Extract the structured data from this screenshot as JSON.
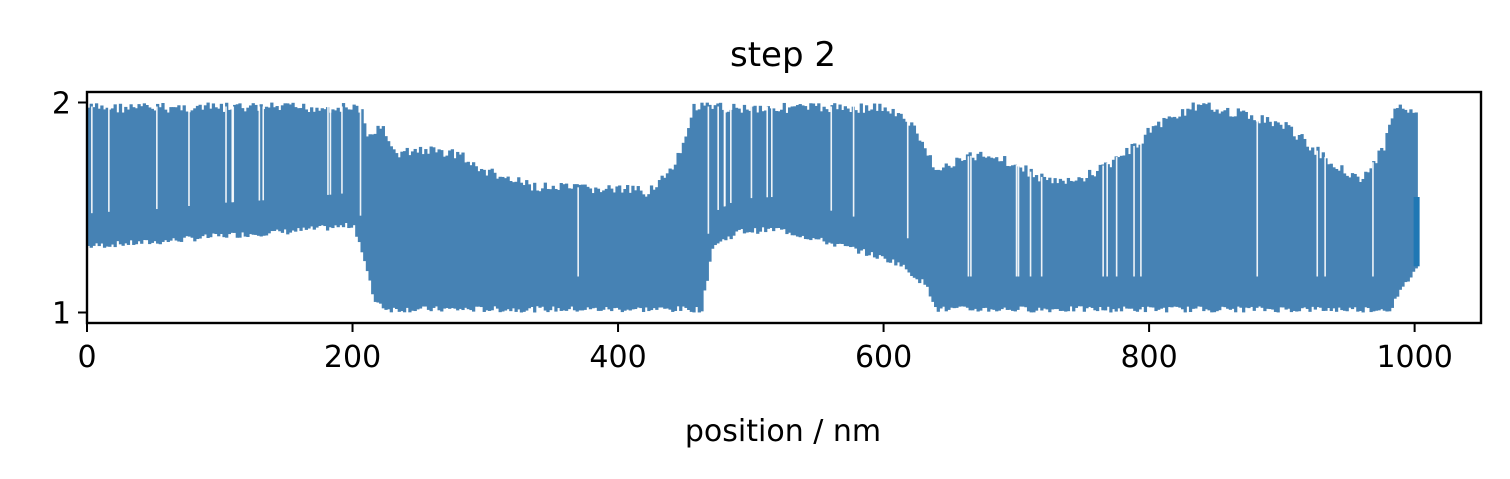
{
  "chart_data": {
    "type": "bar",
    "title": "step 2",
    "xlabel": "position / nm",
    "ylabel": "",
    "xlim": [
      0,
      1050
    ],
    "ylim": [
      0.95,
      2.05
    ],
    "xticks": [
      0,
      200,
      400,
      600,
      800,
      1000
    ],
    "yticks": [
      1,
      2
    ],
    "grid": false,
    "color": "#4682b4",
    "series": [
      {
        "style": "vertical-range-bars",
        "profile_lower": [
          [
            0,
            1.3
          ],
          [
            20,
            1.31
          ],
          [
            50,
            1.32
          ],
          [
            100,
            1.35
          ],
          [
            150,
            1.37
          ],
          [
            200,
            1.4
          ],
          [
            205,
            1.3
          ],
          [
            215,
            1.05
          ],
          [
            225,
            1.0
          ],
          [
            300,
            1.0
          ],
          [
            400,
            1.0
          ],
          [
            462,
            1.0
          ],
          [
            470,
            1.3
          ],
          [
            490,
            1.37
          ],
          [
            520,
            1.38
          ],
          [
            550,
            1.33
          ],
          [
            580,
            1.28
          ],
          [
            610,
            1.22
          ],
          [
            630,
            1.12
          ],
          [
            640,
            1.0
          ],
          [
            700,
            1.0
          ],
          [
            800,
            1.0
          ],
          [
            900,
            1.0
          ],
          [
            980,
            1.0
          ],
          [
            1000,
            1.2
          ]
        ],
        "profile_upper": [
          [
            0,
            2.0
          ],
          [
            100,
            2.0
          ],
          [
            205,
            2.0
          ],
          [
            210,
            1.85
          ],
          [
            220,
            1.92
          ],
          [
            230,
            1.78
          ],
          [
            250,
            1.8
          ],
          [
            280,
            1.78
          ],
          [
            290,
            1.72
          ],
          [
            320,
            1.65
          ],
          [
            340,
            1.62
          ],
          [
            400,
            1.61
          ],
          [
            420,
            1.6
          ],
          [
            440,
            1.7
          ],
          [
            450,
            1.85
          ],
          [
            455,
            2.0
          ],
          [
            600,
            2.0
          ],
          [
            620,
            1.92
          ],
          [
            630,
            1.8
          ],
          [
            640,
            1.7
          ],
          [
            660,
            1.76
          ],
          [
            680,
            1.78
          ],
          [
            700,
            1.72
          ],
          [
            720,
            1.66
          ],
          [
            740,
            1.64
          ],
          [
            760,
            1.7
          ],
          [
            790,
            1.82
          ],
          [
            800,
            1.9
          ],
          [
            830,
            2.0
          ],
          [
            850,
            2.0
          ],
          [
            880,
            1.95
          ],
          [
            900,
            1.92
          ],
          [
            920,
            1.82
          ],
          [
            940,
            1.72
          ],
          [
            960,
            1.66
          ],
          [
            975,
            1.8
          ],
          [
            985,
            2.0
          ],
          [
            1000,
            2.0
          ]
        ]
      },
      {
        "style": "highlight-bar",
        "x": 1000,
        "y_range": [
          1.22,
          1.55
        ],
        "color": "#1f77b4"
      }
    ]
  }
}
